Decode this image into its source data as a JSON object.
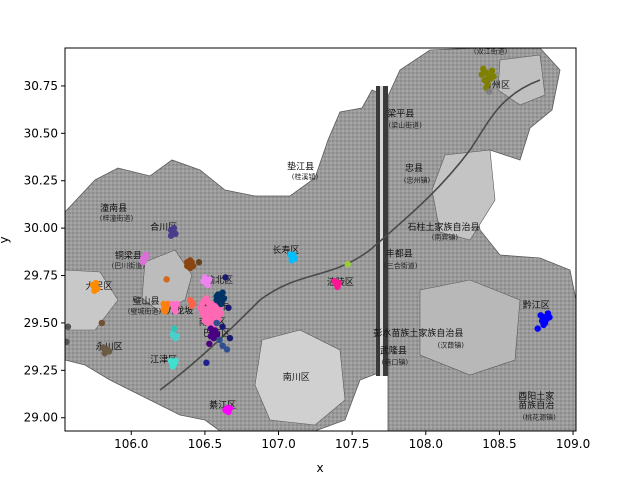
{
  "chart_data": {
    "type": "scatter",
    "xlabel": "x",
    "ylabel": "y",
    "xlim": [
      105.55,
      109.02
    ],
    "ylim": [
      28.93,
      30.95
    ],
    "xticks": [
      "106.0",
      "106.5",
      "107.0",
      "107.5",
      "108.0",
      "108.5",
      "109.0"
    ],
    "xtick_values": [
      106.0,
      106.5,
      107.0,
      107.5,
      108.0,
      108.5,
      109.0
    ],
    "yticks": [
      "29.00",
      "29.25",
      "29.50",
      "29.75",
      "30.00",
      "30.25",
      "30.50",
      "30.75"
    ],
    "ytick_values": [
      29.0,
      29.25,
      29.5,
      29.75,
      30.0,
      30.25,
      30.5,
      30.75
    ],
    "background": "grayscale district map of Chongqing",
    "map_labels": [
      {
        "text": "潼南县",
        "x": 105.88,
        "y": 30.09
      },
      {
        "text": "(梓潼街道)",
        "x": 105.9,
        "y": 30.04,
        "sub": true
      },
      {
        "text": "合川区",
        "x": 106.22,
        "y": 29.99
      },
      {
        "text": "铜梁县",
        "x": 105.98,
        "y": 29.84
      },
      {
        "text": "(巴川街道)",
        "x": 105.98,
        "y": 29.79,
        "sub": true
      },
      {
        "text": "大足区",
        "x": 105.78,
        "y": 29.68
      },
      {
        "text": "璧山县",
        "x": 106.1,
        "y": 29.6
      },
      {
        "text": "(璧城街道)",
        "x": 106.09,
        "y": 29.55,
        "sub": true
      },
      {
        "text": "九龙坡",
        "x": 106.33,
        "y": 29.55
      },
      {
        "text": "永川区",
        "x": 105.85,
        "y": 29.36
      },
      {
        "text": "江津区",
        "x": 106.22,
        "y": 29.29
      },
      {
        "text": "巴南区",
        "x": 106.58,
        "y": 29.43
      },
      {
        "text": "渝北区",
        "x": 106.6,
        "y": 29.71
      },
      {
        "text": "重庆市",
        "x": 106.57,
        "y": 29.57
      },
      {
        "text": "南岸区",
        "x": 106.55,
        "y": 29.49
      },
      {
        "text": "綦江区",
        "x": 106.62,
        "y": 29.05
      },
      {
        "text": "南川区",
        "x": 107.12,
        "y": 29.2
      },
      {
        "text": "长寿区",
        "x": 107.05,
        "y": 29.87
      },
      {
        "text": "涪陵区",
        "x": 107.42,
        "y": 29.7
      },
      {
        "text": "垫江县",
        "x": 107.15,
        "y": 30.31
      },
      {
        "text": "(桂溪镇)",
        "x": 107.18,
        "y": 30.26,
        "sub": true
      },
      {
        "text": "忠县",
        "x": 107.92,
        "y": 30.3
      },
      {
        "text": "(忠州镇)",
        "x": 107.94,
        "y": 30.24,
        "sub": true
      },
      {
        "text": "梁平县",
        "x": 107.83,
        "y": 30.59
      },
      {
        "text": "(梁山街道)",
        "x": 107.86,
        "y": 30.53,
        "sub": true
      },
      {
        "text": "万州区",
        "x": 108.48,
        "y": 30.74
      },
      {
        "text": "(双江街道)",
        "x": 108.44,
        "y": 30.92,
        "sub": true
      },
      {
        "text": "石柱土家族自治县",
        "x": 108.12,
        "y": 29.99
      },
      {
        "text": "(南宾镇)",
        "x": 108.13,
        "y": 29.94,
        "sub": true
      },
      {
        "text": "丰都县",
        "x": 107.82,
        "y": 29.85
      },
      {
        "text": "(三合街道)",
        "x": 107.83,
        "y": 29.79,
        "sub": true
      },
      {
        "text": "黔江区",
        "x": 108.75,
        "y": 29.58
      },
      {
        "text": "彭水苗族土家族自治县",
        "x": 107.95,
        "y": 29.43
      },
      {
        "text": "(汉葭镇)",
        "x": 108.17,
        "y": 29.37,
        "sub": true
      },
      {
        "text": "武隆县",
        "x": 107.78,
        "y": 29.34
      },
      {
        "text": "(巷口镇)",
        "x": 107.79,
        "y": 29.28,
        "sub": true
      },
      {
        "text": "酉阳土家",
        "x": 108.75,
        "y": 29.1
      },
      {
        "text": "苗族自治",
        "x": 108.75,
        "y": 29.05
      },
      {
        "text": "(桃花源镇)",
        "x": 108.77,
        "y": 28.99,
        "sub": true
      }
    ],
    "series": [
      {
        "color": "#808000",
        "x": [
          108.39,
          108.41,
          108.43,
          108.45,
          108.4,
          108.44,
          108.42,
          108.38,
          108.46,
          108.41
        ],
        "y": [
          30.84,
          30.82,
          30.8,
          30.83,
          30.78,
          30.79,
          30.76,
          30.81,
          30.8,
          30.74
        ]
      },
      {
        "color": "#7f7f7f",
        "x": [
          108.43
        ],
        "y": [
          30.72
        ]
      },
      {
        "color": "#0000ff",
        "x": [
          108.78,
          108.8,
          108.82,
          108.84,
          108.79,
          108.81,
          108.83,
          108.8,
          108.76
        ],
        "y": [
          29.54,
          29.53,
          29.52,
          29.53,
          29.51,
          29.5,
          29.55,
          29.49,
          29.47
        ]
      },
      {
        "color": "#483d8b",
        "x": [
          106.27,
          106.28,
          106.29,
          106.3,
          106.27
        ],
        "y": [
          29.99,
          29.98,
          30.0,
          29.97,
          29.96
        ]
      },
      {
        "color": "#da70d6",
        "x": [
          106.08,
          106.09,
          106.1,
          106.08,
          106.1
        ],
        "y": [
          29.84,
          29.83,
          29.85,
          29.82,
          29.86
        ]
      },
      {
        "color": "#ff8c00",
        "x": [
          105.74,
          105.75,
          105.76,
          105.77,
          105.75
        ],
        "y": [
          29.7,
          29.69,
          29.71,
          29.68,
          29.67
        ]
      },
      {
        "color": "#8b4513",
        "x": [
          106.38,
          106.39,
          106.4,
          106.41,
          106.42,
          106.4,
          106.38
        ],
        "y": [
          29.82,
          29.81,
          29.83,
          29.82,
          29.8,
          29.79,
          29.8
        ]
      },
      {
        "color": "#654321",
        "x": [
          106.46
        ],
        "y": [
          29.82
        ]
      },
      {
        "color": "#00bfff",
        "x": [
          107.08,
          107.09,
          107.1,
          107.11,
          107.09
        ],
        "y": [
          29.86,
          29.85,
          29.86,
          29.84,
          29.83
        ]
      },
      {
        "color": "#9acd32",
        "x": [
          107.47
        ],
        "y": [
          29.81
        ]
      },
      {
        "color": "#ff1493",
        "x": [
          107.38,
          107.39,
          107.4,
          107.41,
          107.4
        ],
        "y": [
          29.72,
          29.71,
          29.7,
          29.71,
          29.69
        ]
      },
      {
        "color": "#ee82ee",
        "x": [
          106.5,
          106.51,
          106.52,
          106.53,
          106.51,
          106.49,
          106.52
        ],
        "y": [
          29.74,
          29.73,
          29.72,
          29.73,
          29.71,
          29.72,
          29.7
        ]
      },
      {
        "color": "#ff6347",
        "x": [
          106.4,
          106.41,
          106.42,
          106.41
        ],
        "y": [
          29.62,
          29.61,
          29.6,
          29.59
        ]
      },
      {
        "color": "#ff7f0e",
        "x": [
          106.22,
          106.23,
          106.24,
          106.22,
          106.25,
          106.23
        ],
        "y": [
          29.6,
          29.59,
          29.58,
          29.57,
          29.6,
          29.56
        ]
      },
      {
        "color": "#d2691e",
        "x": [
          106.24
        ],
        "y": [
          29.73
        ]
      },
      {
        "color": "#ff6ec7",
        "x": [
          106.28,
          106.29,
          106.3,
          106.31,
          106.29,
          106.3
        ],
        "y": [
          29.6,
          29.59,
          29.58,
          29.6,
          29.57,
          29.56
        ]
      },
      {
        "color": "#ff69b4",
        "x": [
          106.48,
          106.49,
          106.5,
          106.51,
          106.52,
          106.53,
          106.54,
          106.55,
          106.56,
          106.57,
          106.58,
          106.5,
          106.52,
          106.54,
          106.56,
          106.58,
          106.49,
          106.51,
          106.53,
          106.55,
          106.57,
          106.59,
          106.5,
          106.52,
          106.54,
          106.56,
          106.48,
          106.6,
          106.47,
          106.61
        ],
        "y": [
          29.6,
          29.61,
          29.62,
          29.63,
          29.61,
          29.59,
          29.6,
          29.58,
          29.6,
          29.59,
          29.57,
          29.57,
          29.56,
          29.55,
          29.56,
          29.55,
          29.54,
          29.53,
          29.54,
          29.52,
          29.53,
          29.52,
          29.51,
          29.5,
          29.51,
          29.49,
          29.56,
          29.58,
          29.58,
          29.55
        ]
      },
      {
        "color": "#003366",
        "x": [
          106.58,
          106.59,
          106.6,
          106.61,
          106.62,
          106.6,
          106.62,
          106.58,
          106.61,
          106.63
        ],
        "y": [
          29.64,
          29.65,
          29.63,
          29.64,
          29.62,
          29.61,
          29.66,
          29.62,
          29.6,
          29.63
        ]
      },
      {
        "color": "#191970",
        "x": [
          106.64,
          106.66,
          106.62,
          106.67
        ],
        "y": [
          29.74,
          29.58,
          29.48,
          29.42
        ]
      },
      {
        "color": "#4b0082",
        "x": [
          106.54,
          106.55,
          106.56,
          106.57,
          106.55,
          106.54,
          106.56,
          106.58,
          106.53
        ],
        "y": [
          29.47,
          29.46,
          29.45,
          29.46,
          29.44,
          29.43,
          29.42,
          29.44,
          29.39
        ]
      },
      {
        "color": "#2f4f8f",
        "x": [
          106.6,
          106.62,
          106.58,
          106.65
        ],
        "y": [
          29.41,
          29.38,
          29.5,
          29.36
        ]
      },
      {
        "color": "#1e1e8c",
        "x": [
          106.51
        ],
        "y": [
          29.29
        ]
      },
      {
        "color": "#40e0d0",
        "x": [
          106.27,
          106.28,
          106.29,
          106.3,
          106.28
        ],
        "y": [
          29.3,
          29.29,
          29.28,
          29.3,
          29.27
        ]
      },
      {
        "color": "#48d1cc",
        "x": [
          106.28,
          106.29,
          106.3,
          106.31
        ],
        "y": [
          29.44,
          29.43,
          29.42,
          29.43
        ]
      },
      {
        "color": "#2ec4b6",
        "x": [
          106.29
        ],
        "y": [
          29.47
        ]
      },
      {
        "color": "#ff00ff",
        "x": [
          106.65,
          106.66,
          106.67,
          106.66,
          106.64
        ],
        "y": [
          29.05,
          29.04,
          29.05,
          29.03,
          29.04
        ]
      },
      {
        "color": "#6b5b45",
        "x": [
          105.81,
          105.82,
          105.83,
          105.84,
          105.82,
          105.85
        ],
        "y": [
          29.37,
          29.36,
          29.35,
          29.36,
          29.34,
          29.35
        ]
      },
      {
        "color": "#705030",
        "x": [
          105.8
        ],
        "y": [
          29.5
        ]
      },
      {
        "color": "#555555",
        "x": [
          105.57,
          105.56
        ],
        "y": [
          29.48,
          29.4
        ]
      }
    ]
  }
}
